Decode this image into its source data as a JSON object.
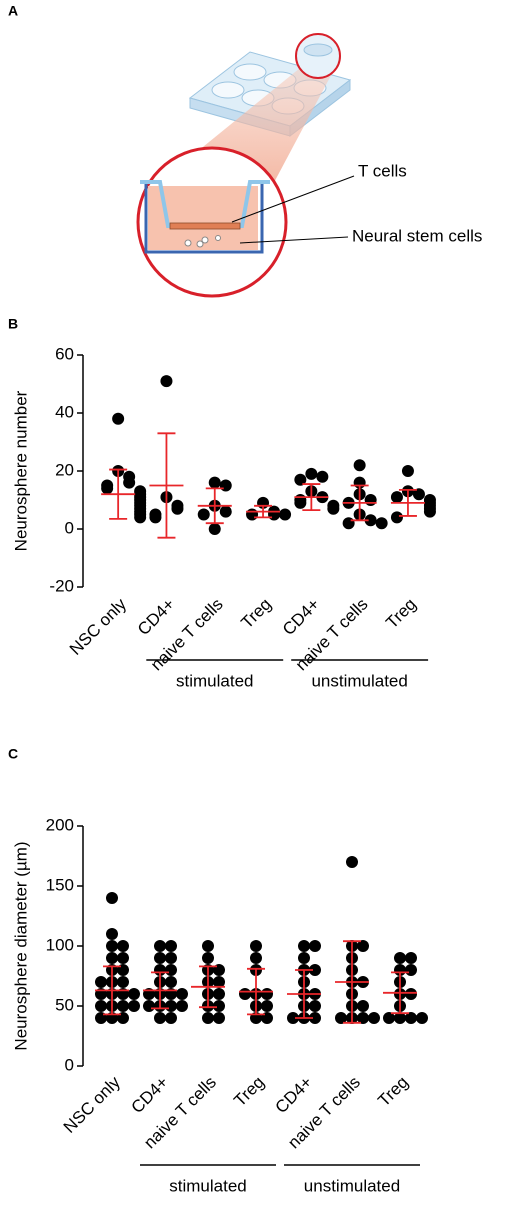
{
  "diagram": {
    "panel_label": "A",
    "labels": [
      "T cells",
      "Neural stem cells"
    ]
  },
  "chart_data": [
    {
      "type": "dotplot",
      "panel_label": "B",
      "ylabel": "Neurosphere number",
      "categories": [
        "NSC only",
        "CD4+",
        "naive T cells",
        "Treg",
        "CD4+",
        "naive T cells",
        "Treg"
      ],
      "group_labels": [
        "stimulated",
        "unstimulated"
      ],
      "values": [
        [
          38,
          20,
          18,
          16,
          15,
          14,
          13,
          12,
          11,
          10,
          9,
          8,
          7,
          6,
          5,
          4
        ],
        [
          51,
          11,
          8,
          7,
          5,
          4
        ],
        [
          16,
          15,
          8,
          6,
          5,
          0
        ],
        [
          9,
          6,
          5,
          5,
          5
        ],
        [
          19,
          18,
          17,
          13,
          11,
          10,
          9,
          8,
          7
        ],
        [
          22,
          16,
          12,
          10,
          9,
          5,
          3,
          2,
          2
        ],
        [
          20,
          13,
          12,
          11,
          10,
          9,
          8,
          7,
          6,
          4
        ]
      ],
      "mean": [
        12,
        15,
        8,
        6,
        11,
        9,
        9
      ],
      "sd": [
        8.5,
        18,
        6,
        2,
        4.5,
        6,
        4.5
      ],
      "color": "#000000",
      "error_color": "#e8262a",
      "ylim": [
        -20,
        60
      ],
      "yticks": [
        -20,
        0,
        20,
        40,
        60
      ]
    },
    {
      "type": "dotplot",
      "panel_label": "C",
      "ylabel": "Neurosphere diameter (µm)",
      "categories": [
        "NSC only",
        "CD4+",
        "naive T cells",
        "Treg",
        "CD4+",
        "naive T cells",
        "Treg"
      ],
      "group_labels": [
        "stimulated",
        "unstimulated"
      ],
      "values": [
        [
          140,
          110,
          100,
          100,
          90,
          90,
          80,
          80,
          70,
          70,
          70,
          60,
          60,
          60,
          60,
          50,
          50,
          50,
          50,
          40,
          40,
          40
        ],
        [
          100,
          100,
          90,
          90,
          80,
          80,
          70,
          70,
          60,
          60,
          60,
          60,
          50,
          50,
          50,
          50,
          40,
          40
        ],
        [
          100,
          90,
          80,
          80,
          70,
          70,
          60,
          60,
          50,
          50,
          40,
          40
        ],
        [
          100,
          90,
          80,
          60,
          60,
          60,
          50,
          50,
          40,
          40
        ],
        [
          100,
          100,
          90,
          80,
          80,
          70,
          60,
          60,
          50,
          50,
          40,
          40,
          40
        ],
        [
          170,
          100,
          100,
          90,
          80,
          70,
          70,
          60,
          50,
          50,
          40,
          40,
          40,
          40
        ],
        [
          90,
          90,
          80,
          80,
          70,
          60,
          60,
          50,
          40,
          40,
          40,
          40
        ]
      ],
      "mean": [
        63,
        63,
        66,
        62,
        60,
        70,
        61
      ],
      "sd": [
        20,
        15,
        17,
        19,
        20,
        34,
        17
      ],
      "color": "#000000",
      "error_color": "#e8262a",
      "ylim": [
        0,
        200
      ],
      "yticks": [
        0,
        50,
        100,
        150,
        200
      ]
    }
  ]
}
